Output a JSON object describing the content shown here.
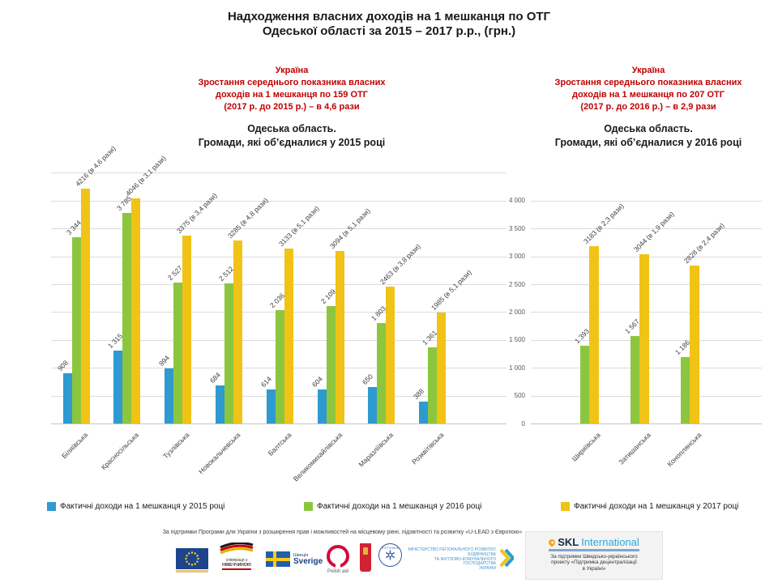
{
  "title": {
    "line1": "Надходження власних доходів на 1 мешканця по ОТГ",
    "line2": "Одеської області за 2015 – 2017 р.р., (грн.)"
  },
  "notes": {
    "left": {
      "line1": "Україна",
      "line2": "Зростання середнього показника власних",
      "line3_prefix": "доходів на 1 мешканця по ",
      "line3_bold": "159",
      "line3_suffix": " ОТГ",
      "line4": "(2017 р. до 2015 р.) – в 4,6 рази",
      "subtitle1": "Одеська  область.",
      "subtitle2": "Громади, які  об’єдналися  у 2015 році"
    },
    "right": {
      "line1": "Україна",
      "line2": "Зростання середнього показника власних",
      "line3_prefix": "доходів на 1 мешканця по ",
      "line3_bold": "207",
      "line3_suffix": " ОТГ",
      "line4": "(2017 р. до 2016 р.) – в 2,9 рази",
      "subtitle1": "Одеська  область.",
      "subtitle2": "Громади, які  об’єдналися  у 2016 році"
    }
  },
  "legend": [
    {
      "label": "Фактичні доходи на 1 мешканця у 2015 році",
      "color": "#2e9ad0"
    },
    {
      "label": "Фактичні доходи на 1 мешканця у 2016 році",
      "color": "#8cc63f"
    },
    {
      "label": "Фактичні доходи на 1 мешканця у 2017 році",
      "color": "#f0c316"
    }
  ],
  "chart_data": [
    {
      "type": "bar",
      "title": "Одеська область. Громади, які об’єдналися у 2015 році",
      "categories": [
        "Біляївська",
        "Красносільська",
        "Тузлівська",
        "Новокальчевська",
        "Балтська",
        "Великомихайлівська",
        "Маразліївська",
        "Розквітівська"
      ],
      "series": [
        {
          "name": "Фактичні доходи на 1 мешканця у 2015 році",
          "color": "#2e9ad0",
          "values": [
            908,
            1315,
            994,
            684,
            614,
            604,
            650,
            388
          ],
          "labels": [
            "908",
            "1 315",
            "994",
            "684",
            "614",
            "604",
            "650",
            "388"
          ]
        },
        {
          "name": "Фактичні доходи на 1 мешканця у 2016 році",
          "color": "#8cc63f",
          "values": [
            3344,
            3785,
            2527,
            2512,
            2036,
            2109,
            1803,
            1361
          ],
          "labels": [
            "3 344",
            "3 785",
            "2 527",
            "2 512",
            "2 036",
            "2 109",
            "1 803",
            "1 361"
          ]
        },
        {
          "name": "Фактичні доходи на 1 мешканця у 2017 році",
          "color": "#f0c316",
          "values": [
            4216,
            4046,
            3375,
            3285,
            3133,
            3094,
            2463,
            1985
          ],
          "labels": [
            "4216 (в 4,6 рази)",
            "4046 (в 3,1 рази)",
            "3375 (в 3,4 рази)",
            "3285 (в 4,8 рази)",
            "3133 (в 5,1 рази)",
            "3094 (в 5,1 рази)",
            "2463 (в 3,8 рази)",
            "1985 (в 5,1 рази)"
          ]
        }
      ],
      "ylim": [
        0,
        4500
      ],
      "grid_step": 500,
      "grid": true,
      "y_axis_labels_visible": false,
      "xlabel": "",
      "ylabel": ""
    },
    {
      "type": "bar",
      "title": "Одеська область. Громади, які об’єдналися у 2016 році",
      "categories": [
        "Ширяївська",
        "Затишанська",
        "Коноплянська"
      ],
      "y_ticks": [
        "4 000",
        "3 500",
        "3 000",
        "2 500",
        "2 000",
        "1 500",
        "1 000",
        "500",
        "0"
      ],
      "series": [
        {
          "name": "Фактичні доходи на 1 мешканця у 2016 році",
          "color": "#8cc63f",
          "values": [
            1393,
            1567,
            1186
          ],
          "labels": [
            "1 393",
            "1 567",
            "1 186"
          ]
        },
        {
          "name": "Фактичні доходи на 1 мешканця у 2017 році",
          "color": "#f0c316",
          "values": [
            3183,
            3044,
            2828
          ],
          "labels": [
            "3183 (в 2,3 рази)",
            "3044 (в 1,9 рази)",
            "2828 (в 2,4 рази)"
          ]
        }
      ],
      "ylim": [
        0,
        4000
      ],
      "grid_step": 500,
      "grid": true,
      "y_axis_labels_visible": true,
      "xlabel": "",
      "ylabel": ""
    }
  ],
  "footer": {
    "supported_by": "За підтримки Програми для України з розширення прав і можливостей на місцевому рівні, підзвітності та розвитку «U-LEAD з Європою»",
    "german": {
      "line1": "співпраця з",
      "line2": "НІМЕЧЧИНОЮ"
    },
    "sweden": {
      "line1": "Швеція",
      "line2": "Sverige"
    },
    "polish_label": "Polish aid",
    "estonia_label": "ESTONIA",
    "ministry": {
      "line1": "МІНІСТЕРСТВО РЕГІОНАЛЬНОГО РОЗВИТКУ",
      "line2": "БУДІВНИЦТВА",
      "line3": "ТА ЖИТЛОВО-КОМУНАЛЬНОГО ГОСПОДАРСТВА",
      "line4": "УКРАЇНИ"
    },
    "skl": {
      "brand1": "SKL",
      "brand2": "International",
      "line1": "За підтримки Шведсько-українського",
      "line2": "проекту «Підтримка децентралізації",
      "line3": "в Україні»"
    }
  }
}
